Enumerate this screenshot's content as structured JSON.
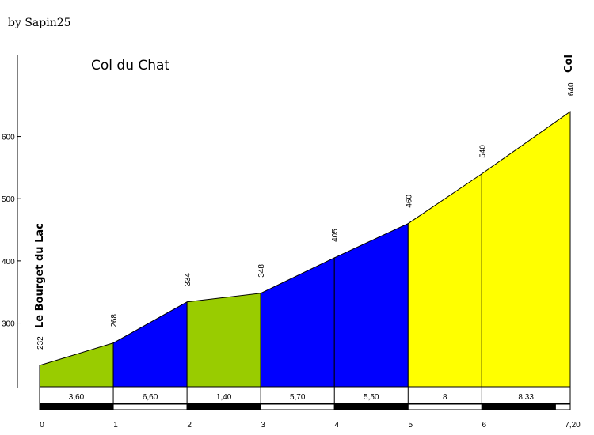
{
  "credit": "by Sapin25",
  "chart_data": {
    "type": "area",
    "title": "Col du Chat",
    "start_label": "Le Bourget du Lac",
    "end_label": "Col",
    "x": [
      0,
      1,
      2,
      3,
      4,
      5,
      6,
      7.2
    ],
    "y": [
      232,
      268,
      334,
      348,
      405,
      460,
      540,
      640
    ],
    "elevation_labels": [
      "232",
      "268",
      "334",
      "348",
      "405",
      "460",
      "540",
      "640"
    ],
    "gradients": [
      "3,60",
      "6,60",
      "1,40",
      "5,70",
      "5,50",
      "8",
      "8,33"
    ],
    "segment_colors": [
      "#99cc00",
      "#0000ff",
      "#99cc00",
      "#0000ff",
      "#0000ff",
      "#ffff00",
      "#ffff00"
    ],
    "y_ticks": [
      300,
      400,
      500,
      600
    ],
    "y_tick_labels": [
      "300",
      "400",
      "500",
      "600"
    ],
    "x_ticks": [
      0,
      1,
      2,
      3,
      4,
      5,
      6,
      7.2
    ],
    "x_tick_labels": [
      "0",
      "1",
      "2",
      "3",
      "4",
      "5",
      "6",
      "7,20"
    ],
    "ylim": [
      200,
      710
    ],
    "xlim": [
      0,
      7.2
    ]
  }
}
